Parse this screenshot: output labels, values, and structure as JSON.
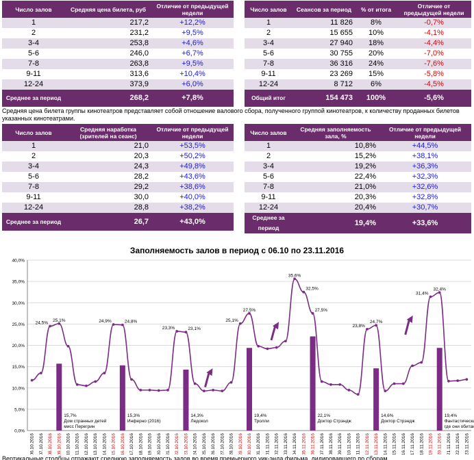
{
  "t1": {
    "headers": [
      "Число залов",
      "Средняя цена билета, руб",
      "Отличие от предыдущей недели"
    ],
    "rows": [
      {
        "halls": "1",
        "value": "217,2",
        "diff": "+12,2%"
      },
      {
        "halls": "2",
        "value": "231,2",
        "diff": "+9,5%"
      },
      {
        "halls": "3-4",
        "value": "253,8",
        "diff": "+4,6%"
      },
      {
        "halls": "5-6",
        "value": "246,0",
        "diff": "+6,7%"
      },
      {
        "halls": "7-8",
        "value": "263,8",
        "diff": "+9,5%"
      },
      {
        "halls": "9-11",
        "value": "313,6",
        "diff": "+10,4%"
      },
      {
        "halls": "12-24",
        "value": "373,9",
        "diff": "+6,0%"
      }
    ],
    "total": {
      "label": "Среднее за период",
      "value": "268,2",
      "diff": "+7,8%"
    }
  },
  "t2": {
    "headers": [
      "Число залов",
      "Сеансов за период",
      "% от итога",
      "Отличие от предыдущей недели"
    ],
    "rows": [
      {
        "halls": "1",
        "value": "11 826",
        "pct": "8%",
        "diff": "-0,7%"
      },
      {
        "halls": "2",
        "value": "15 655",
        "pct": "10%",
        "diff": "-4,1%"
      },
      {
        "halls": "3-4",
        "value": "27 940",
        "pct": "18%",
        "diff": "-4,4%"
      },
      {
        "halls": "5-6",
        "value": "30 755",
        "pct": "20%",
        "diff": "-7,0%"
      },
      {
        "halls": "7-8",
        "value": "36 316",
        "pct": "24%",
        "diff": "-7,6%"
      },
      {
        "halls": "9-11",
        "value": "23 269",
        "pct": "15%",
        "diff": "-5,8%"
      },
      {
        "halls": "12-24",
        "value": "8 712",
        "pct": "6%",
        "diff": "-4,5%"
      }
    ],
    "total": {
      "label": "Общий итог",
      "value": "154 473",
      "pct": "100%",
      "diff": "-5,6%"
    }
  },
  "note": "Средняя цена билета группы кинотеатров представляет собой отношение валового сбора, полученного группой кинотеатров, к количеству проданных билетов указанных кинотеатрами.",
  "t3": {
    "headers": [
      "Число залов",
      "Средняя наработка (зрителей на сеанс)",
      "Отличие от предыдущей недели"
    ],
    "rows": [
      {
        "halls": "1",
        "value": "21,0",
        "diff": "+53,5%"
      },
      {
        "halls": "2",
        "value": "20,3",
        "diff": "+50,2%"
      },
      {
        "halls": "3-4",
        "value": "24,3",
        "diff": "+49,8%"
      },
      {
        "halls": "5-6",
        "value": "28,2",
        "diff": "+43,6%"
      },
      {
        "halls": "7-8",
        "value": "29,2",
        "diff": "+38,6%"
      },
      {
        "halls": "9-11",
        "value": "30,0",
        "diff": "+40,0%"
      },
      {
        "halls": "12-24",
        "value": "28,8",
        "diff": "+38,2%"
      }
    ],
    "total": {
      "label": "Среднее за период",
      "value": "26,7",
      "diff": "+43,0%"
    }
  },
  "t4": {
    "headers": [
      "Число залов",
      "Средняя заполняемость зала, %",
      "Отличие от предыдущей недели"
    ],
    "rows": [
      {
        "halls": "1",
        "value": "10,8%",
        "diff": "+44,5%"
      },
      {
        "halls": "2",
        "value": "15,2%",
        "diff": "+38,1%"
      },
      {
        "halls": "3-4",
        "value": "19,2%",
        "diff": "+36,3%"
      },
      {
        "halls": "5-6",
        "value": "22,4%",
        "diff": "+32,3%"
      },
      {
        "halls": "7-8",
        "value": "21,0%",
        "diff": "+32,6%"
      },
      {
        "halls": "9-11",
        "value": "20,3%",
        "diff": "+32,8%"
      },
      {
        "halls": "12-24",
        "value": "20,4%",
        "diff": "+30,7%"
      }
    ],
    "total": {
      "label": "Среднее за период",
      "value": "19,4%",
      "diff": "+33,6%"
    }
  },
  "footer_cut": "Вертикальные столбцы отражают среднюю заполняемость залов во время премьерного уик-энда фильма, лидировавшего по сборам",
  "colors": {
    "purple": "#7b2d86",
    "header": "#6a2c6b",
    "row_alt": "#e4dce8",
    "pos": "#1a1ae6",
    "neg": "#e00000"
  },
  "chart_data": {
    "type": "line",
    "title": "Заполняемость залов в период с 06.10 по 23.11.2016",
    "ylim": [
      0,
      40
    ],
    "yticks": [
      "0,0%",
      "5,0%",
      "10,0%",
      "15,0%",
      "20,0%",
      "25,0%",
      "30,0%",
      "35,0%",
      "40,0%"
    ],
    "grid": true,
    "highlight_color": "#e00000",
    "x": [
      "06.10.2016",
      "07.10.2016",
      "08.10.2016",
      "09.10.2016",
      "10.10.2016",
      "11.10.2016",
      "12.10.2016",
      "13.10.2016",
      "14.10.2016",
      "15.10.2016",
      "16.10.2016",
      "17.10.2016",
      "18.10.2016",
      "19.10.2016",
      "20.10.2016",
      "21.10.2016",
      "22.10.2016",
      "23.10.2016",
      "24.10.2016",
      "25.10.2016",
      "26.10.2016",
      "27.10.2016",
      "28.10.2016",
      "29.10.2016",
      "30.10.2016",
      "31.10.2016",
      "01.11.2016",
      "02.11.2016",
      "03.11.2016",
      "04.11.2016",
      "05.11.2016",
      "06.11.2016",
      "07.11.2016",
      "08.11.2016",
      "09.11.2016",
      "10.11.2016",
      "11.11.2016",
      "12.11.2016",
      "13.11.2016",
      "14.11.2016",
      "15.11.2016",
      "16.11.2016",
      "17.11.2016",
      "18.11.2016",
      "19.11.2016",
      "20.11.2016",
      "21.11.2016",
      "22.11.2016",
      "23.11.2016"
    ],
    "highlight_indices": [
      2,
      3,
      9,
      10,
      16,
      17,
      23,
      24,
      30,
      31,
      37,
      38,
      44,
      45
    ],
    "series": [
      {
        "name": "Заполняемость",
        "values": [
          11.8,
          13.5,
          24.5,
          25.1,
          19.8,
          10.8,
          10.5,
          11.5,
          13.5,
          24.9,
          24.8,
          12.0,
          9.5,
          9.5,
          9.4,
          9.5,
          23.3,
          23.1,
          11.0,
          9.3,
          9.5,
          9.3,
          11.3,
          25.1,
          27.5,
          19.8,
          19.2,
          19.5,
          21.0,
          35.6,
          32.5,
          27.5,
          11.5,
          10.8,
          10.8,
          9.5,
          8.5,
          23.8,
          24.7,
          9.3,
          11.0,
          11.0,
          15.2,
          16.0,
          31.4,
          32.4,
          11.6,
          11.7,
          12.0
        ]
      }
    ],
    "data_labels": [
      {
        "index": 2,
        "text": "24,5%"
      },
      {
        "index": 3,
        "text": "25,1%"
      },
      {
        "index": 9,
        "text": "24,9%"
      },
      {
        "index": 10,
        "text": "24,8%"
      },
      {
        "index": 16,
        "text": "23,3%"
      },
      {
        "index": 17,
        "text": "23,1%"
      },
      {
        "index": 23,
        "text": "25,1%"
      },
      {
        "index": 24,
        "text": "27,5%"
      },
      {
        "index": 29,
        "text": "35,6%"
      },
      {
        "index": 30,
        "text": "32,5%"
      },
      {
        "index": 31,
        "text": "27,5%"
      },
      {
        "index": 37,
        "text": "23,8%"
      },
      {
        "index": 38,
        "text": "24,7%"
      },
      {
        "index": 44,
        "text": "31,4%"
      },
      {
        "index": 45,
        "text": "32,4%"
      }
    ],
    "bars": [
      {
        "index": 3,
        "value": 15.7,
        "label": "15,7%",
        "film": "Дом странных детей мисс Перегрин"
      },
      {
        "index": 10,
        "value": 15.3,
        "label": "15,3%",
        "film": "Инферно (2016)"
      },
      {
        "index": 17,
        "value": 14.3,
        "label": "14,3%",
        "film": "Ледокол"
      },
      {
        "index": 24,
        "value": 19.4,
        "label": "19,4%",
        "film": "Тролли"
      },
      {
        "index": 31,
        "value": 22.1,
        "label": "22,1%",
        "film": "Доктор Стрэндж"
      },
      {
        "index": 38,
        "value": 14.6,
        "label": "14,6%",
        "film": "Доктор Стрэндж"
      },
      {
        "index": 45,
        "value": 19.4,
        "label": "19,4%",
        "film": "Фантастические твари и где они обитают"
      }
    ],
    "arrows": [
      {
        "index": 19.5,
        "from": 10.2,
        "to": 14.6
      },
      {
        "index": 26.8,
        "from": 21.2,
        "to": 25.5
      },
      {
        "index": 41.6,
        "from": 22.5,
        "to": 27.0
      }
    ]
  }
}
